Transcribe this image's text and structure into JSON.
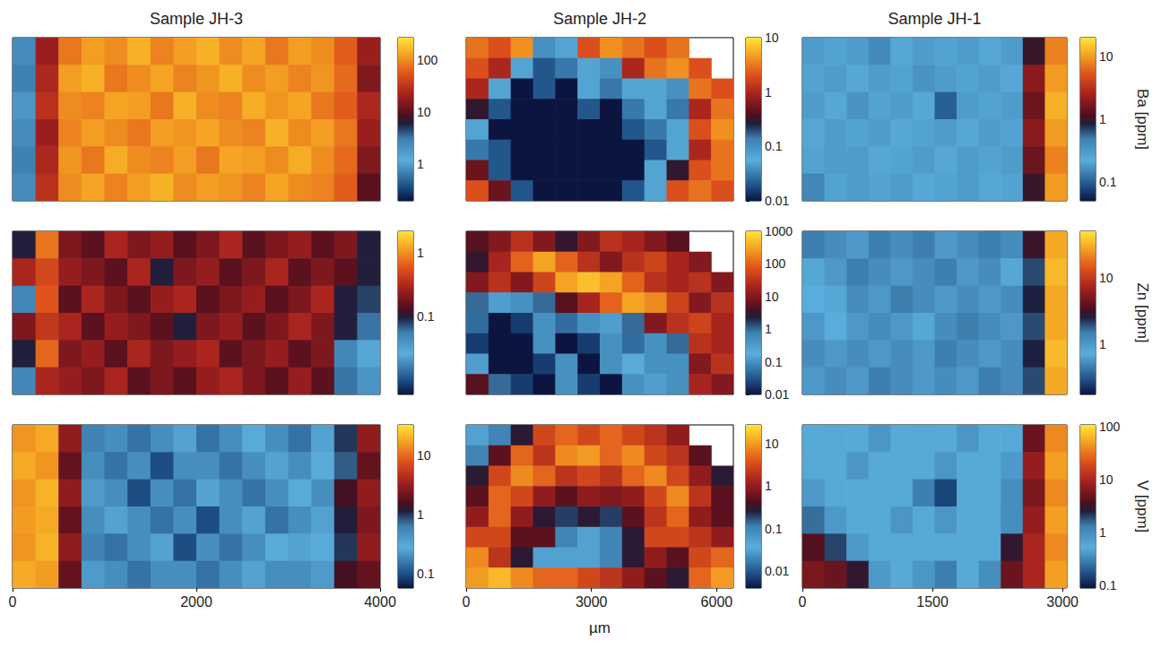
{
  "chart_data": [
    {
      "type": "heatmap",
      "title": "Sample JH-3",
      "log": true,
      "tick_labels": false,
      "xlim": [
        0,
        4000
      ],
      "ylim": [
        0,
        1850
      ],
      "colorbar": {
        "lim": [
          0.2,
          270
        ],
        "ticks": [
          1,
          10,
          100
        ]
      },
      "cells": [
        [
          0.8,
          20,
          80,
          120,
          100,
          150,
          90,
          120,
          150,
          100,
          130,
          80,
          120,
          100,
          60,
          20
        ],
        [
          0.7,
          25,
          120,
          150,
          80,
          100,
          130,
          90,
          110,
          150,
          100,
          120,
          90,
          110,
          70,
          15
        ],
        [
          0.9,
          30,
          100,
          90,
          130,
          120,
          80,
          150,
          100,
          90,
          140,
          110,
          130,
          80,
          60,
          25
        ],
        [
          0.8,
          20,
          90,
          120,
          100,
          80,
          120,
          110,
          130,
          100,
          90,
          150,
          100,
          120,
          80,
          20
        ],
        [
          0.7,
          25,
          110,
          80,
          140,
          100,
          90,
          120,
          80,
          130,
          120,
          100,
          140,
          100,
          70,
          15
        ],
        [
          0.8,
          30,
          100,
          130,
          90,
          120,
          150,
          100,
          120,
          110,
          90,
          130,
          100,
          90,
          60,
          10
        ]
      ]
    },
    {
      "type": "heatmap",
      "title": "Sample JH-2",
      "log": true,
      "tick_labels": false,
      "xlim": [
        0,
        6400
      ],
      "ylim": [
        0,
        4000
      ],
      "colorbar": {
        "lim": [
          0.01,
          10
        ],
        "ticks": [
          0.01,
          0.1,
          1,
          10
        ]
      },
      "cells": [
        [
          3,
          2,
          4,
          0.1,
          0.05,
          2,
          4,
          3,
          2,
          3,
          null,
          null
        ],
        [
          2,
          1,
          0.05,
          0.02,
          0.03,
          0.05,
          0.1,
          1,
          3,
          4,
          2,
          null
        ],
        [
          1,
          0.05,
          0.01,
          0.02,
          0.01,
          0.05,
          0.03,
          0.05,
          0.05,
          0.1,
          3,
          2
        ],
        [
          0.3,
          0.02,
          0.01,
          0.01,
          0.01,
          0.02,
          0.01,
          0.03,
          0.05,
          0.03,
          1,
          3
        ],
        [
          0.05,
          0.01,
          0.01,
          0.01,
          0.01,
          0.01,
          0.01,
          0.02,
          0.03,
          0.05,
          2,
          4
        ],
        [
          0.03,
          0.02,
          0.01,
          0.01,
          0.01,
          0.01,
          0.01,
          0.01,
          0.02,
          0.05,
          1,
          3
        ],
        [
          0.5,
          0.02,
          0.01,
          0.01,
          0.01,
          0.01,
          0.01,
          0.01,
          0.05,
          0.3,
          2,
          3
        ],
        [
          2,
          0.5,
          0.02,
          0.01,
          0.01,
          0.01,
          0.01,
          0.02,
          0.05,
          2,
          3,
          2
        ]
      ]
    },
    {
      "type": "heatmap",
      "title": "Sample JH-1",
      "log": true,
      "tick_labels": false,
      "xlim": [
        0,
        3050
      ],
      "ylim": [
        0,
        1900
      ],
      "colorbar": {
        "lim": [
          0.05,
          20
        ],
        "ticks": [
          0.1,
          1,
          10
        ],
        "label": "Ba [ppm]"
      },
      "cells": [
        [
          0.3,
          0.2,
          0.3,
          0.4,
          0.25,
          0.3,
          0.2,
          0.3,
          0.25,
          0.3,
          1,
          8
        ],
        [
          0.2,
          0.3,
          0.25,
          0.3,
          0.2,
          0.35,
          0.3,
          0.2,
          0.3,
          0.25,
          2,
          10
        ],
        [
          0.3,
          0.25,
          0.35,
          0.2,
          0.3,
          0.25,
          0.1,
          0.3,
          0.2,
          0.3,
          1.5,
          12
        ],
        [
          0.25,
          0.3,
          0.2,
          0.3,
          0.25,
          0.2,
          0.3,
          0.25,
          0.3,
          0.2,
          2,
          10
        ],
        [
          0.2,
          0.3,
          0.3,
          0.25,
          0.2,
          0.3,
          0.25,
          0.3,
          0.2,
          0.3,
          1.5,
          8
        ],
        [
          0.15,
          0.2,
          0.3,
          0.2,
          0.3,
          0.25,
          0.2,
          0.3,
          0.25,
          0.2,
          1,
          10
        ]
      ]
    },
    {
      "type": "heatmap",
      "log": true,
      "tick_labels": false,
      "xlim": [
        0,
        4000
      ],
      "ylim": [
        0,
        1850
      ],
      "colorbar": {
        "lim": [
          0.006,
          2.2
        ],
        "ticks": [
          0.1,
          1
        ]
      },
      "cells": [
        [
          0.1,
          0.8,
          0.2,
          0.15,
          0.3,
          0.2,
          0.25,
          0.15,
          0.2,
          0.3,
          0.15,
          0.2,
          0.25,
          0.15,
          0.2,
          0.1
        ],
        [
          0.3,
          0.5,
          0.25,
          0.2,
          0.15,
          0.3,
          0.1,
          0.2,
          0.25,
          0.15,
          0.2,
          0.3,
          0.15,
          0.2,
          0.15,
          0.1
        ],
        [
          0.05,
          0.6,
          0.15,
          0.3,
          0.2,
          0.15,
          0.25,
          0.3,
          0.15,
          0.2,
          0.25,
          0.15,
          0.2,
          0.3,
          0.1,
          0.08
        ],
        [
          0.2,
          0.4,
          0.3,
          0.15,
          0.25,
          0.2,
          0.15,
          0.1,
          0.2,
          0.25,
          0.15,
          0.2,
          0.3,
          0.2,
          0.1,
          0.06
        ],
        [
          0.1,
          0.7,
          0.2,
          0.25,
          0.15,
          0.3,
          0.2,
          0.25,
          0.3,
          0.15,
          0.2,
          0.25,
          0.15,
          0.2,
          0.05,
          0.03
        ],
        [
          0.05,
          0.3,
          0.25,
          0.2,
          0.3,
          0.15,
          0.2,
          0.15,
          0.25,
          0.3,
          0.2,
          0.15,
          0.25,
          0.15,
          0.06,
          0.04
        ]
      ]
    },
    {
      "type": "heatmap",
      "log": true,
      "tick_labels": false,
      "xlim": [
        0,
        6400
      ],
      "ylim": [
        0,
        4000
      ],
      "colorbar": {
        "lim": [
          0.01,
          1000
        ],
        "ticks": [
          0.01,
          0.1,
          1,
          10,
          100,
          1000
        ]
      },
      "cells": [
        [
          5,
          10,
          30,
          10,
          3,
          10,
          30,
          20,
          10,
          5,
          null,
          null
        ],
        [
          3,
          20,
          100,
          300,
          100,
          30,
          10,
          30,
          50,
          20,
          10,
          null
        ],
        [
          10,
          30,
          10,
          50,
          300,
          500,
          300,
          100,
          30,
          20,
          30,
          10
        ],
        [
          1,
          0.3,
          0.1,
          1,
          5,
          20,
          100,
          300,
          200,
          50,
          10,
          30
        ],
        [
          0.05,
          0.01,
          0.02,
          0.1,
          0.05,
          0.1,
          0.3,
          1,
          10,
          30,
          50,
          20
        ],
        [
          0.02,
          0.01,
          0.01,
          0.1,
          0.01,
          0.02,
          0.1,
          0.05,
          0.1,
          1,
          30,
          20
        ],
        [
          0.3,
          0.01,
          0.01,
          0.02,
          0.1,
          0.01,
          0.1,
          0.2,
          0.1,
          0.1,
          10,
          30
        ],
        [
          5,
          1,
          0.02,
          0.01,
          0.1,
          0.02,
          0.01,
          0.1,
          0.3,
          0.1,
          20,
          10
        ]
      ]
    },
    {
      "type": "heatmap",
      "log": true,
      "tick_labels": false,
      "xlim": [
        0,
        3050
      ],
      "ylim": [
        0,
        1900
      ],
      "colorbar": {
        "lim": [
          0.17,
          52
        ],
        "ticks": [
          1,
          10
        ],
        "label": "Zn [ppm]"
      },
      "cells": [
        [
          1.5,
          1.2,
          1,
          1.5,
          1.2,
          1.5,
          1,
          1.2,
          1.5,
          1.2,
          3,
          30
        ],
        [
          0.8,
          1,
          1.5,
          1.2,
          1,
          1.2,
          1.5,
          1,
          1.2,
          0.8,
          2,
          35
        ],
        [
          0.7,
          0.8,
          1.2,
          1,
          1.5,
          1.2,
          1,
          1.2,
          1,
          1.2,
          2.5,
          30
        ],
        [
          1,
          0.7,
          1,
          1.2,
          1,
          0.8,
          1.2,
          1.5,
          1.2,
          1,
          2,
          30
        ],
        [
          1.2,
          1,
          1.2,
          1,
          1.2,
          1,
          1.5,
          1.2,
          1,
          1.2,
          2.5,
          35
        ],
        [
          1,
          1.2,
          1,
          1.5,
          1.2,
          1,
          1.2,
          1,
          1.5,
          1.2,
          2,
          30
        ]
      ]
    },
    {
      "type": "heatmap",
      "log": true,
      "tick_labels": "x",
      "xlim": [
        0,
        4000
      ],
      "ylim": [
        0,
        1850
      ],
      "xticks": [
        0,
        2000,
        4000
      ],
      "colorbar": {
        "lim": [
          0.058,
          33
        ],
        "ticks": [
          0.1,
          1,
          10
        ]
      },
      "cells": [
        [
          15,
          18,
          3,
          0.6,
          0.2,
          0.15,
          0.2,
          0.25,
          0.15,
          0.2,
          0.3,
          0.2,
          0.15,
          0.25,
          1,
          3
        ],
        [
          18,
          15,
          2,
          0.5,
          0.15,
          0.2,
          0.1,
          0.2,
          0.2,
          0.15,
          0.2,
          0.25,
          0.2,
          0.3,
          0.8,
          2
        ],
        [
          15,
          20,
          3,
          0.4,
          0.2,
          0.1,
          0.2,
          0.15,
          0.25,
          0.2,
          0.15,
          0.2,
          0.3,
          0.2,
          1.5,
          3
        ],
        [
          16,
          18,
          2,
          0.5,
          0.25,
          0.2,
          0.15,
          0.2,
          0.1,
          0.2,
          0.25,
          0.15,
          0.2,
          0.25,
          1.2,
          2.5
        ],
        [
          15,
          20,
          3,
          0.6,
          0.15,
          0.2,
          0.25,
          0.1,
          0.2,
          0.15,
          0.2,
          0.3,
          0.25,
          0.3,
          1,
          3
        ],
        [
          18,
          16,
          2,
          0.4,
          0.2,
          0.15,
          0.2,
          0.2,
          0.15,
          0.2,
          0.25,
          0.2,
          0.2,
          0.4,
          1.5,
          2
        ]
      ]
    },
    {
      "type": "heatmap",
      "log": true,
      "tick_labels": "x",
      "xlabel": "µm",
      "xlim": [
        0,
        6400
      ],
      "ylim": [
        0,
        4000
      ],
      "xticks": [
        0,
        3000,
        6000
      ],
      "colorbar": {
        "lim": [
          0.004,
          28
        ],
        "ticks": [
          0.01,
          0.1,
          1,
          10
        ]
      },
      "cells": [
        [
          0.05,
          0.1,
          0.3,
          3,
          5,
          3,
          5,
          3,
          2,
          1,
          null,
          null
        ],
        [
          0.1,
          0.5,
          5,
          2,
          8,
          10,
          5,
          8,
          3,
          2,
          0.5,
          null
        ],
        [
          0.3,
          3,
          8,
          5,
          2,
          3,
          2,
          5,
          8,
          3,
          1,
          0.3
        ],
        [
          0.5,
          5,
          3,
          1,
          0.5,
          1,
          0.8,
          1,
          3,
          8,
          2,
          0.5
        ],
        [
          1,
          5,
          1,
          0.3,
          0.2,
          0.3,
          0.2,
          0.5,
          2,
          5,
          1,
          0.5
        ],
        [
          3,
          3,
          0.5,
          0.5,
          0.1,
          0.05,
          0.1,
          0.3,
          3,
          3,
          2,
          1
        ],
        [
          8,
          2,
          0.3,
          0.05,
          0.05,
          0.05,
          0.1,
          0.3,
          1,
          0.5,
          3,
          5
        ],
        [
          10,
          15,
          8,
          5,
          5,
          3,
          2,
          1,
          0.5,
          0.3,
          5,
          10
        ]
      ]
    },
    {
      "type": "heatmap",
      "log": true,
      "tick_labels": "x",
      "xlim": [
        0,
        3050
      ],
      "ylim": [
        0,
        1900
      ],
      "xticks": [
        0,
        1500,
        3000
      ],
      "colorbar": {
        "lim": [
          0.09,
          110
        ],
        "ticks": [
          0.1,
          1,
          10,
          100
        ],
        "label": "V [ppm]"
      },
      "cells": [
        [
          0.5,
          0.6,
          0.5,
          0.4,
          0.5,
          0.6,
          0.5,
          0.4,
          0.5,
          0.6,
          5,
          40
        ],
        [
          0.6,
          0.5,
          0.4,
          0.5,
          0.6,
          0.5,
          0.4,
          0.5,
          0.6,
          0.8,
          8,
          50
        ],
        [
          0.8,
          0.6,
          0.5,
          0.6,
          0.5,
          0.3,
          0.15,
          0.5,
          0.5,
          1,
          6,
          40
        ],
        [
          1.5,
          0.8,
          0.6,
          0.5,
          0.4,
          0.5,
          0.4,
          0.5,
          0.6,
          1,
          8,
          50
        ],
        [
          4,
          2,
          0.8,
          0.5,
          0.5,
          0.6,
          0.5,
          0.5,
          0.6,
          3,
          10,
          40
        ],
        [
          6,
          5,
          3,
          0.8,
          0.5,
          0.4,
          0.3,
          0.5,
          1,
          5,
          10,
          50
        ]
      ]
    }
  ]
}
